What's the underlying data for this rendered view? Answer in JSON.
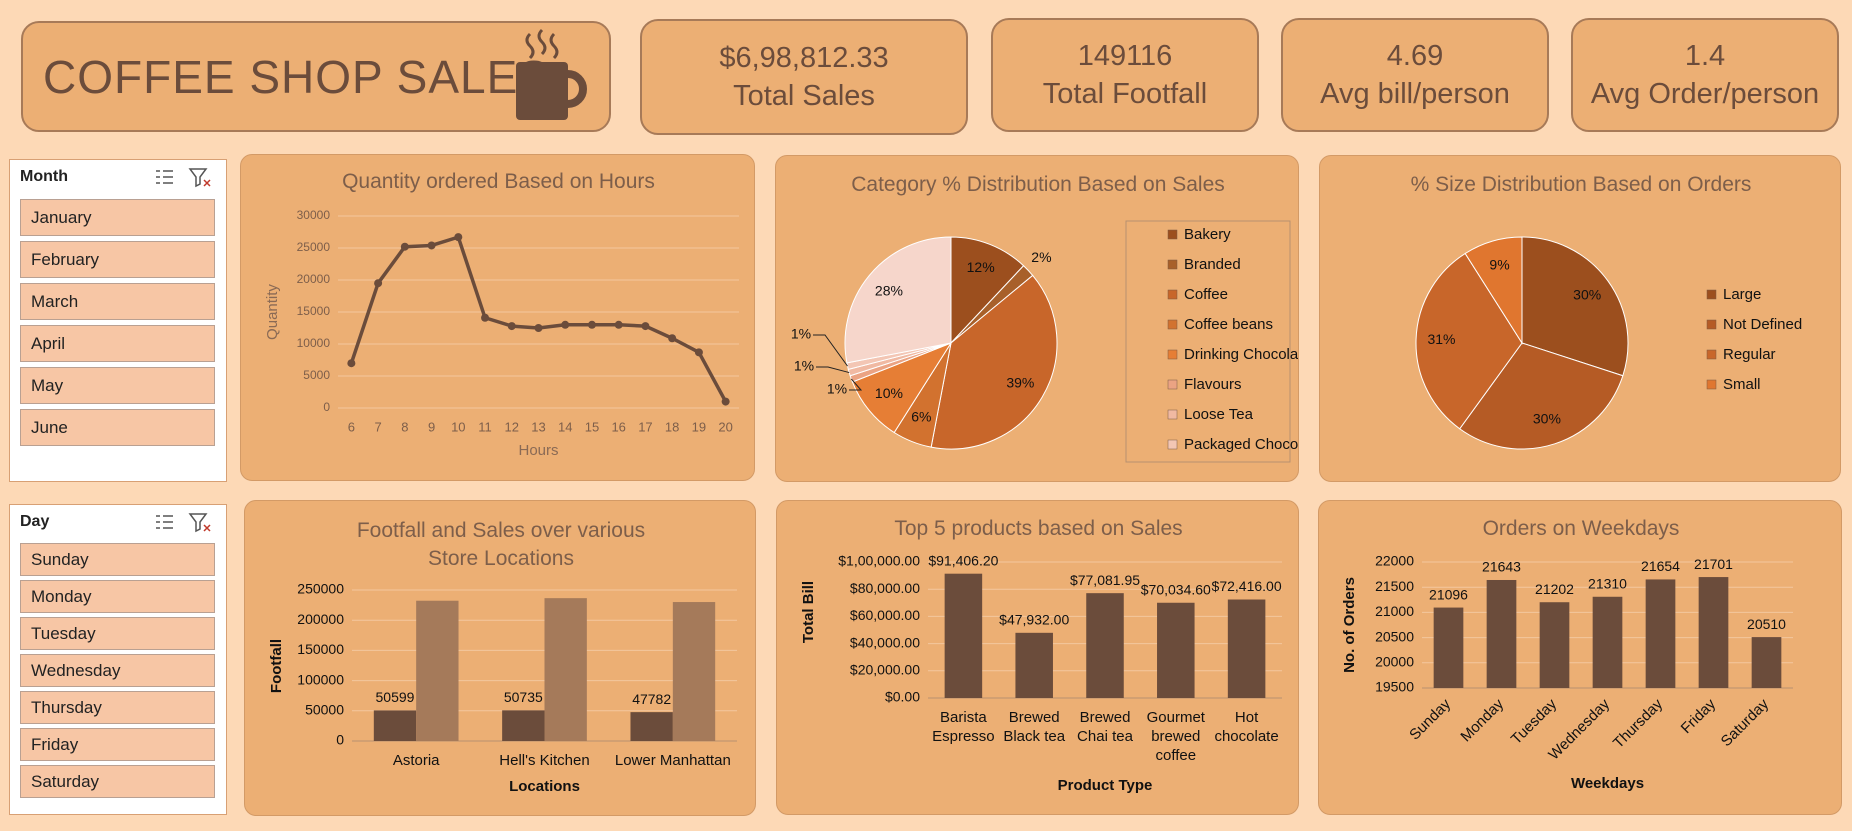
{
  "header": {
    "title": "COFFEE SHOP SALES"
  },
  "kpis": [
    {
      "value": "$6,98,812.33",
      "label": "Total Sales"
    },
    {
      "value": "149116",
      "label": "Total Footfall"
    },
    {
      "value": "4.69",
      "label": "Avg bill/person"
    },
    {
      "value": "1.4",
      "label": "Avg Order/person"
    }
  ],
  "slicers": [
    {
      "title": "Month",
      "items": [
        "January",
        "February",
        "March",
        "April",
        "May",
        "June"
      ]
    },
    {
      "title": "Day",
      "items": [
        "Sunday",
        "Monday",
        "Tuesday",
        "Wednesday",
        "Thursday",
        "Friday",
        "Saturday"
      ]
    }
  ],
  "chart_data": [
    {
      "type": "line",
      "title": "Quantity ordered Based on Hours",
      "x_label": "Hours",
      "y_label": "Quantity",
      "categories": [
        6,
        7,
        8,
        9,
        10,
        11,
        12,
        13,
        14,
        15,
        16,
        17,
        18,
        19,
        20
      ],
      "values": [
        7000,
        19500,
        25200,
        25400,
        26700,
        14100,
        12800,
        12500,
        13000,
        13000,
        13000,
        12800,
        10900,
        8700,
        1000
      ],
      "color": "#6b4c3b",
      "ylim": [
        0,
        30000
      ],
      "yticks": [
        0,
        5000,
        10000,
        15000,
        20000,
        25000,
        30000
      ],
      "grid": true
    },
    {
      "type": "pie",
      "title": "Category % Distribution Based on Sales",
      "categories": [
        "Bakery",
        "Branded",
        "Coffee",
        "Coffee beans",
        "Drinking Chocolate",
        "Flavours",
        "Loose Tea",
        "Packaged Chocolate",
        null
      ],
      "values": [
        12,
        2,
        39,
        6,
        10,
        1,
        1,
        1,
        28
      ],
      "value_labels": [
        "12%",
        "2%",
        "39%",
        "6%",
        "10%",
        "1%",
        "1%",
        "1%",
        "28%"
      ],
      "colors": [
        "#9c4f1e",
        "#a8602a",
        "#c8662a",
        "#d2722f",
        "#e67e35",
        "#eba383",
        "#f0b9a2",
        "#f3c6b4",
        "#f6d6cb"
      ],
      "legend": "right"
    },
    {
      "type": "pie",
      "title": "% Size Distribution Based on Orders",
      "categories": [
        "Large",
        "Not Defined",
        "Regular",
        "Small"
      ],
      "values": [
        30,
        30,
        31,
        9
      ],
      "value_labels": [
        "30%",
        "30%",
        "31%",
        "9%"
      ],
      "colors": [
        "#9c4f1e",
        "#b55b25",
        "#c8662a",
        "#e0762f"
      ],
      "legend": "right"
    },
    {
      "type": "bar",
      "title": "Footfall and Sales over various Store Locations",
      "x_label": "Locations",
      "y_label": "Footfall",
      "categories": [
        "Astoria",
        "Hell's Kitchen",
        "Lower Manhattan"
      ],
      "series": [
        {
          "name": null,
          "color": "#6b4c3b",
          "values": [
            50599,
            50735,
            47782
          ],
          "data_labels": true
        },
        {
          "name": null,
          "color": "#a57a5a",
          "values": [
            232244,
            236511,
            230057
          ]
        }
      ],
      "ylim": [
        0,
        250000
      ],
      "yticks": [
        0,
        50000,
        100000,
        150000,
        200000,
        250000
      ],
      "grid": true
    },
    {
      "type": "bar",
      "title": "Top 5 products based on Sales",
      "x_label": "Product Type",
      "y_label": "Total Bill",
      "categories": [
        "Barista Espresso",
        "Brewed Black tea",
        "Brewed Chai tea",
        "Gourmet brewed coffee",
        "Hot chocolate"
      ],
      "values": [
        91406.2,
        47932,
        77081.95,
        70034.6,
        72416
      ],
      "value_labels": [
        "$91,406.20",
        "$47,932.00",
        "$77,081.95",
        "$70,034.60",
        "$72,416.00"
      ],
      "data_labels": true,
      "color": "#6b4c3b",
      "ylim": [
        0,
        100000
      ],
      "yticks": [
        {
          "value": 0,
          "label": "$0.00"
        },
        {
          "value": 20000,
          "label": "$20,000.00"
        },
        {
          "value": 40000,
          "label": "$40,000.00"
        },
        {
          "value": 60000,
          "label": "$60,000.00"
        },
        {
          "value": 80000,
          "label": "$80,000.00"
        },
        {
          "value": 100000,
          "label": "$1,00,000.00"
        }
      ],
      "grid": true
    },
    {
      "type": "bar",
      "title": "Orders on Weekdays",
      "x_label": "Weekdays",
      "y_label": "No. of Orders",
      "categories": [
        "Sunday",
        "Monday",
        "Tuesday",
        "Wednesday",
        "Thursday",
        "Friday",
        "Saturday"
      ],
      "values": [
        21096,
        21643,
        21202,
        21310,
        21654,
        21701,
        20510
      ],
      "data_labels": true,
      "color": "#6b4c3b",
      "ylim": [
        19500,
        22000
      ],
      "yticks": [
        19500,
        20000,
        20500,
        21000,
        21500,
        22000
      ],
      "grid": true
    }
  ]
}
